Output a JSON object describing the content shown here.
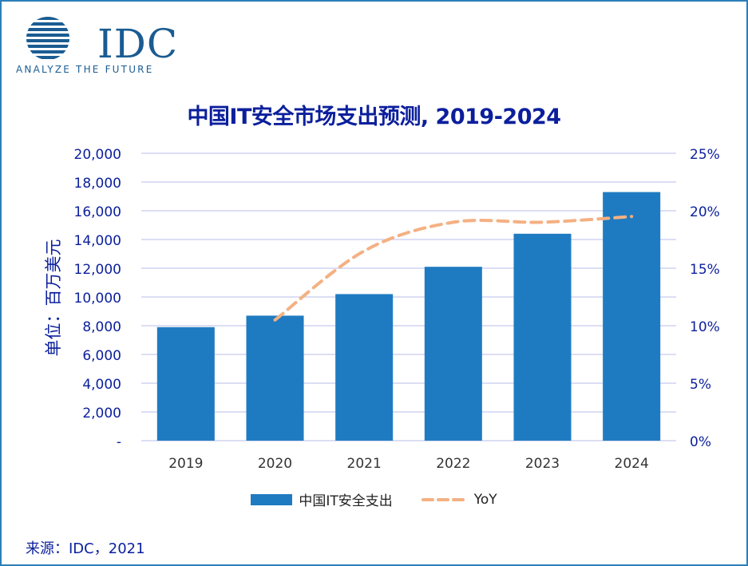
{
  "logo": {
    "brand": "IDC",
    "tagline": "ANALYZE THE FUTURE"
  },
  "colors": {
    "bar": "#1f7bc1",
    "yoy_line": "#f4b183",
    "gridline": "#c7c9ee",
    "axis_text": "#0b1f9c",
    "title": "#0b1f9c"
  },
  "chart_data": {
    "type": "bar",
    "title": "中国IT安全市场支出预测, 2019-2024",
    "categories": [
      "2019",
      "2020",
      "2021",
      "2022",
      "2023",
      "2024"
    ],
    "series": [
      {
        "name": "中国IT安全支出",
        "type": "bar",
        "axis": "left",
        "values": [
          7900,
          8700,
          10200,
          12100,
          14400,
          17300
        ]
      },
      {
        "name": "YoY",
        "type": "line",
        "style": "dashed",
        "axis": "right",
        "values": [
          null,
          0.105,
          0.165,
          0.19,
          0.19,
          0.195
        ]
      }
    ],
    "ylabel": "单位：百万美元",
    "ylim": [
      0,
      20000
    ],
    "y_ticks": [
      0,
      2000,
      4000,
      6000,
      8000,
      10000,
      12000,
      14000,
      16000,
      18000,
      20000
    ],
    "y_tick_labels": [
      "-",
      "2,000",
      "4,000",
      "6,000",
      "8,000",
      "10,000",
      "12,000",
      "14,000",
      "16,000",
      "18,000",
      "20,000"
    ],
    "y2lim": [
      0,
      0.25
    ],
    "y2_ticks": [
      0,
      0.05,
      0.1,
      0.15,
      0.2,
      0.25
    ],
    "y2_tick_labels": [
      "0%",
      "5%",
      "10%",
      "15%",
      "20%",
      "25%"
    ],
    "grid": true,
    "legend": "bottom"
  },
  "source": "来源：IDC，2021"
}
